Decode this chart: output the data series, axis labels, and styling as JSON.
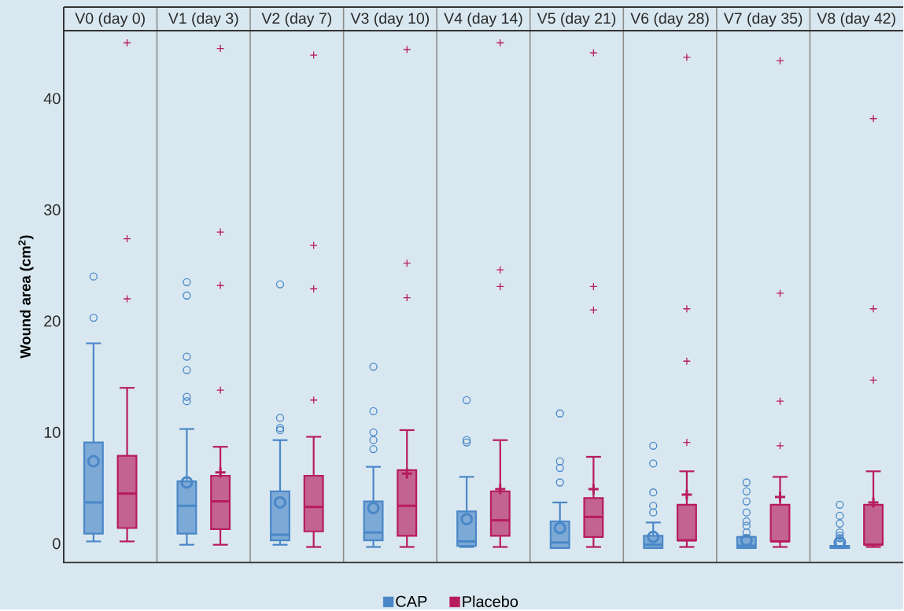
{
  "chart_data": {
    "type": "box",
    "ylabel": "Wound area (cm$^{2}$)",
    "categories": [
      "V0 (day 0)",
      "V1 (day 3)",
      "V2 (day 7)",
      "V3 (day 10)",
      "V4 (day 14)",
      "V5 (day 21)",
      "V6 (day 28)",
      "V7 (day 35)",
      "V8 (day 42)"
    ],
    "ylim": [
      -1.7,
      46.1
    ],
    "yticks": [
      0,
      10,
      20,
      30,
      40
    ],
    "legend": "bottom",
    "series": [
      {
        "name": "CAP",
        "color": "#4a87c7",
        "marker": "circle",
        "boxes": [
          {
            "low": 0.2,
            "q1": 0.9,
            "median": 3.7,
            "q3": 9.1,
            "high": 18.0,
            "mean": 7.4,
            "outliers": [
              20.3,
              24.0
            ]
          },
          {
            "low": -0.1,
            "q1": 0.9,
            "median": 3.4,
            "q3": 5.6,
            "high": 10.3,
            "mean": 5.5,
            "outliers": [
              12.8,
              13.2,
              15.6,
              16.8,
              22.3,
              23.5
            ]
          },
          {
            "low": -0.1,
            "q1": 0.3,
            "median": 0.8,
            "q3": 4.7,
            "high": 9.3,
            "mean": 3.7,
            "outliers": [
              10.2,
              10.4,
              11.3,
              23.3
            ]
          },
          {
            "low": -0.3,
            "q1": 0.3,
            "median": 1.0,
            "q3": 3.8,
            "high": 6.9,
            "mean": 3.2,
            "outliers": [
              8.5,
              9.3,
              10.0,
              11.9,
              15.9
            ]
          },
          {
            "low": -0.3,
            "q1": -0.2,
            "median": 0.2,
            "q3": 2.9,
            "high": 6.0,
            "mean": 2.2,
            "outliers": [
              9.1,
              9.3,
              12.9
            ]
          },
          {
            "low": -0.4,
            "q1": -0.4,
            "median": 0.1,
            "q3": 2.0,
            "high": 3.7,
            "mean": 1.4,
            "outliers": [
              5.5,
              6.8,
              7.4,
              11.7
            ]
          },
          {
            "low": -0.4,
            "q1": -0.4,
            "median": -0.1,
            "q3": 0.7,
            "high": 1.9,
            "mean": 0.6,
            "outliers": [
              2.8,
              3.4,
              4.6,
              7.2,
              8.8
            ]
          },
          {
            "low": -0.4,
            "q1": -0.4,
            "median": -0.2,
            "q3": 0.6,
            "high": 0.6,
            "mean": 0.3,
            "outliers": [
              1.0,
              1.6,
              2.0,
              2.8,
              3.8,
              4.7,
              5.5
            ]
          },
          {
            "low": -0.4,
            "q1": -0.4,
            "median": -0.3,
            "q3": -0.2,
            "high": -0.2,
            "mean": 0.1,
            "outliers": [
              0.0,
              0.5,
              0.7,
              1.0,
              1.8,
              2.5,
              3.5
            ]
          }
        ]
      },
      {
        "name": "Placebo",
        "color": "#b71c5d",
        "marker": "cross",
        "boxes": [
          {
            "low": 0.2,
            "q1": 1.4,
            "median": 4.5,
            "q3": 7.9,
            "high": 14.0,
            "outliers": [
              22.0,
              27.4,
              45.0
            ]
          },
          {
            "low": -0.1,
            "q1": 1.3,
            "median": 3.8,
            "q3": 6.1,
            "high": 8.7,
            "mean": 6.4,
            "outliers": [
              13.8,
              23.2,
              28.0,
              44.5
            ]
          },
          {
            "low": -0.3,
            "q1": 1.1,
            "median": 3.3,
            "q3": 6.1,
            "high": 9.6,
            "outliers": [
              12.9,
              22.9,
              26.8,
              43.9
            ]
          },
          {
            "low": -0.3,
            "q1": 0.7,
            "median": 3.4,
            "q3": 6.6,
            "high": 10.2,
            "mean": 6.3,
            "outliers": [
              22.1,
              25.2,
              44.4
            ]
          },
          {
            "low": -0.3,
            "q1": 0.7,
            "median": 2.1,
            "q3": 4.7,
            "high": 9.3,
            "mean": 4.9,
            "outliers": [
              23.1,
              24.6,
              45.0
            ]
          },
          {
            "low": -0.3,
            "q1": 0.6,
            "median": 2.4,
            "q3": 4.1,
            "high": 7.8,
            "mean": 4.9,
            "outliers": [
              21.0,
              23.1,
              44.1
            ]
          },
          {
            "low": -0.3,
            "q1": 0.3,
            "median": 0.3,
            "q3": 3.5,
            "high": 6.5,
            "mean": 4.4,
            "outliers": [
              9.1,
              16.4,
              21.1,
              43.7
            ]
          },
          {
            "low": -0.3,
            "q1": 0.2,
            "median": 0.2,
            "q3": 3.5,
            "high": 6.0,
            "mean": 4.2,
            "outliers": [
              8.8,
              12.8,
              22.5,
              43.4
            ]
          },
          {
            "low": -0.3,
            "q1": -0.1,
            "median": -0.1,
            "q3": 3.5,
            "high": 6.5,
            "mean": 3.7,
            "outliers": [
              14.7,
              21.1,
              38.2
            ]
          }
        ]
      }
    ]
  }
}
